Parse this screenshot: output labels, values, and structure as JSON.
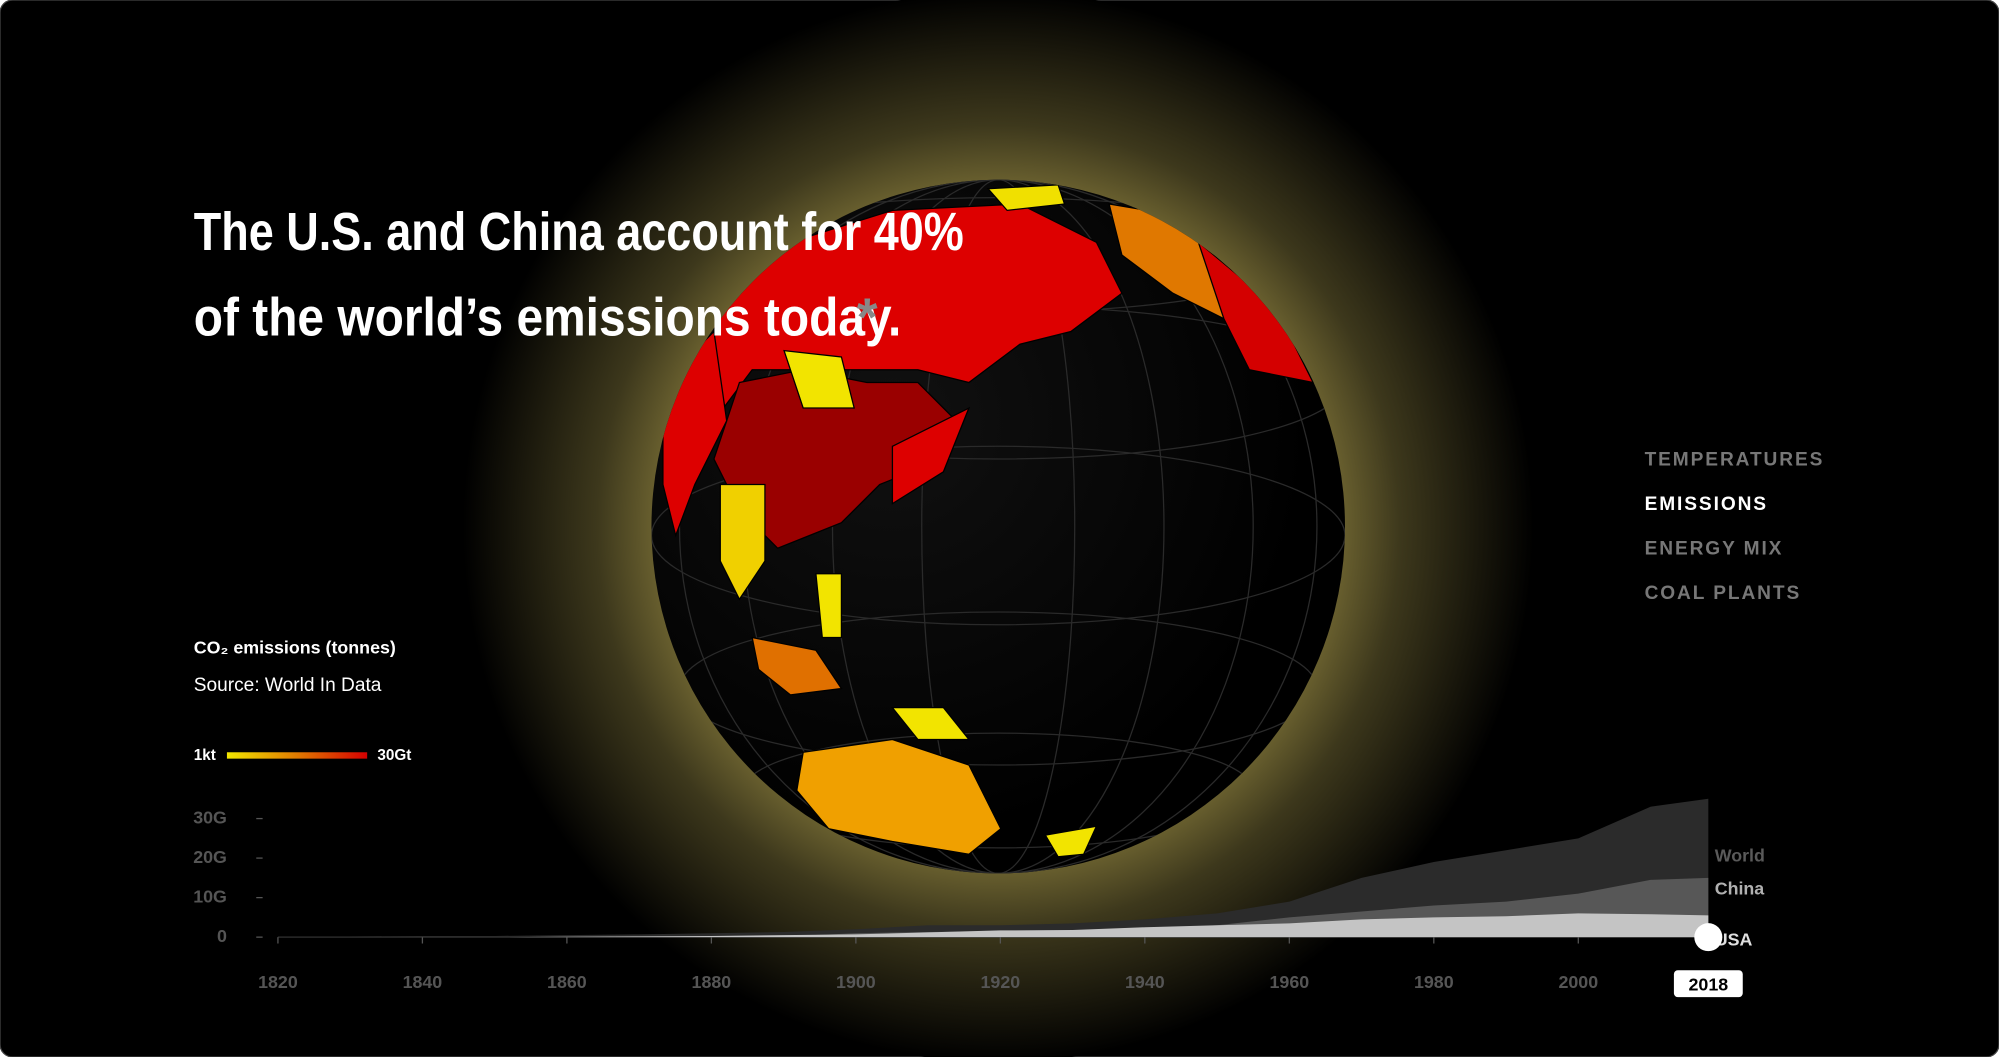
{
  "headline": {
    "line1": "The U.S. and China account for 40%",
    "line2": "of the world’s emissions today.",
    "footnote_mark": "*"
  },
  "nav": {
    "items": [
      "TEMPERATURES",
      "EMISSIONS",
      "ENERGY MIX",
      "COAL PLANTS"
    ],
    "active": 1
  },
  "legend": {
    "title": "CO₂ emissions (tonnes)",
    "source": "Source: World In Data",
    "scale_min": "1kt",
    "scale_max": "30Gt",
    "scale_colors": [
      "#f2e600",
      "#e07a00",
      "#d40000"
    ]
  },
  "chart_data": {
    "type": "area",
    "x": [
      1820,
      1830,
      1840,
      1850,
      1860,
      1870,
      1880,
      1890,
      1900,
      1910,
      1920,
      1930,
      1940,
      1950,
      1960,
      1970,
      1980,
      1990,
      2000,
      2010,
      2018
    ],
    "xlim": [
      1820,
      2018
    ],
    "xticks": [
      1820,
      1840,
      1860,
      1880,
      1900,
      1920,
      1940,
      1960,
      1980,
      2000
    ],
    "ylim": [
      0,
      30
    ],
    "yticks": [
      {
        "value": 0,
        "label": "0"
      },
      {
        "value": 10,
        "label": "10G"
      },
      {
        "value": 20,
        "label": "20G"
      },
      {
        "value": 30,
        "label": "30G"
      }
    ],
    "series": [
      {
        "name": "World",
        "color": "#2b2b2b",
        "label_color": "#5a5a5a",
        "values": [
          0.2,
          0.2,
          0.3,
          0.3,
          0.5,
          0.7,
          1,
          1.3,
          2,
          3,
          3,
          3.5,
          4.5,
          6,
          9,
          15,
          19,
          22,
          25,
          33,
          35
        ]
      },
      {
        "name": "China",
        "color": "#575757",
        "label_color": "#b0b0b0",
        "values": [
          0,
          0,
          0,
          0,
          0,
          0,
          0.1,
          0.2,
          1,
          1.3,
          1.5,
          1.7,
          2,
          3,
          5,
          6.5,
          8,
          9,
          11,
          14.5,
          15
        ]
      },
      {
        "name": "USA",
        "color": "#c4c4c4",
        "label_color": "#e0e0e0",
        "values": [
          0,
          0,
          0,
          0,
          0.1,
          0.2,
          0.3,
          0.5,
          0.7,
          1.2,
          1.7,
          1.8,
          2.5,
          3,
          3.5,
          4.5,
          5,
          5.3,
          6,
          5.8,
          5.5
        ]
      }
    ],
    "selected_year": 2018
  }
}
